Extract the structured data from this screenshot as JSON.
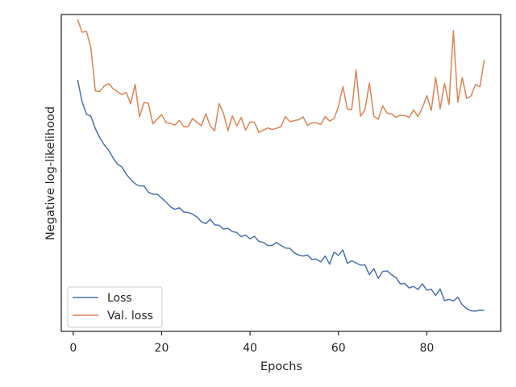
{
  "chart_data": {
    "type": "line",
    "title": "",
    "xlabel": "Epochs",
    "ylabel": "Negative log-likelihood",
    "xlim": [
      -2.7,
      96.7
    ],
    "xticks": [
      0,
      20,
      40,
      60,
      80
    ],
    "ylim": [
      0,
      100
    ],
    "yticks_visible": false,
    "grid": false,
    "legend": {
      "placement": "lower-left",
      "entries": [
        "Loss",
        "Val. loss"
      ]
    },
    "colors": {
      "Loss": "#4c72b0",
      "Val. loss": "#dd8452",
      "axes": "#262626"
    },
    "series": [
      {
        "name": "Loss",
        "x": [
          1,
          2,
          3,
          4,
          5,
          6,
          7,
          8,
          9,
          10,
          11,
          12,
          13,
          14,
          15,
          16,
          17,
          18,
          19,
          20,
          21,
          22,
          23,
          24,
          25,
          26,
          27,
          28,
          29,
          30,
          31,
          32,
          33,
          34,
          35,
          36,
          37,
          38,
          39,
          40,
          41,
          42,
          43,
          44,
          45,
          46,
          47,
          48,
          49,
          50,
          51,
          52,
          53,
          54,
          55,
          56,
          57,
          58,
          59,
          60,
          61,
          62,
          63,
          64,
          65,
          66,
          67,
          68,
          69,
          70,
          71,
          72,
          73,
          74,
          75,
          76,
          77,
          78,
          79,
          80,
          81,
          82,
          83,
          84,
          85,
          86,
          87,
          88,
          89,
          90,
          91,
          92,
          93
        ],
        "y": [
          79.4,
          72.5,
          68.5,
          67.9,
          64.0,
          61.2,
          58.9,
          57.2,
          54.8,
          52.8,
          51.9,
          49.6,
          48.0,
          46.6,
          45.9,
          45.9,
          43.9,
          43.3,
          43.3,
          42.1,
          40.8,
          39.3,
          38.5,
          39.0,
          37.7,
          37.5,
          37.0,
          36.1,
          34.6,
          34.0,
          35.4,
          33.6,
          33.5,
          32.3,
          32.5,
          31.5,
          31.2,
          29.9,
          30.4,
          29.2,
          30.0,
          28.4,
          28.1,
          27.1,
          27.1,
          28.1,
          27.1,
          26.3,
          26.2,
          24.8,
          24.1,
          23.8,
          24.1,
          22.7,
          22.8,
          21.9,
          23.8,
          21.2,
          25.0,
          24.0,
          25.7,
          21.5,
          22.3,
          21.6,
          20.9,
          21.0,
          17.9,
          19.8,
          16.7,
          18.9,
          19.1,
          17.9,
          17.0,
          15.0,
          15.1,
          13.7,
          14.2,
          13.2,
          15.0,
          13.0,
          13.3,
          11.3,
          13.4,
          9.7,
          10.1,
          9.6,
          10.8,
          8.4,
          7.2,
          6.5,
          6.4,
          6.7,
          6.6
        ]
      },
      {
        "name": "Val. loss",
        "x": [
          1,
          2,
          3,
          4,
          5,
          6,
          7,
          8,
          9,
          10,
          11,
          12,
          13,
          14,
          15,
          16,
          17,
          18,
          19,
          20,
          21,
          22,
          23,
          24,
          25,
          26,
          27,
          28,
          29,
          30,
          31,
          32,
          33,
          34,
          35,
          36,
          37,
          38,
          39,
          40,
          41,
          42,
          43,
          44,
          45,
          46,
          47,
          48,
          49,
          50,
          51,
          52,
          53,
          54,
          55,
          56,
          57,
          58,
          59,
          60,
          61,
          62,
          63,
          64,
          65,
          66,
          67,
          68,
          69,
          70,
          71,
          72,
          73,
          74,
          75,
          76,
          77,
          78,
          79,
          80,
          81,
          82,
          83,
          84,
          85,
          86,
          87,
          88,
          89,
          90,
          91,
          92,
          93
        ],
        "y": [
          98.4,
          94.4,
          94.7,
          89.5,
          75.9,
          75.7,
          77.4,
          78.2,
          76.6,
          75.7,
          74.7,
          75.4,
          71.8,
          77.9,
          67.7,
          72.2,
          72.0,
          65.5,
          67.0,
          68.4,
          65.9,
          65.6,
          65.1,
          66.6,
          64.6,
          64.6,
          67.2,
          66.0,
          64.9,
          68.7,
          64.8,
          63.3,
          71.9,
          68.8,
          63.3,
          68.0,
          64.9,
          67.5,
          63.5,
          66.1,
          66.0,
          62.8,
          63.5,
          64.2,
          63.7,
          64.1,
          64.6,
          67.8,
          66.2,
          66.5,
          66.8,
          67.7,
          65.0,
          65.8,
          65.8,
          65.3,
          67.8,
          66.4,
          67.1,
          70.9,
          77.3,
          70.2,
          70.0,
          82.5,
          67.9,
          70.0,
          78.4,
          67.9,
          66.9,
          71.2,
          68.9,
          68.6,
          67.6,
          68.2,
          68.1,
          67.5,
          69.9,
          67.8,
          70.6,
          74.4,
          69.7,
          80.2,
          70.2,
          78.2,
          71.6,
          94.9,
          72.3,
          80.1,
          73.5,
          74.3,
          77.9,
          77.2,
          85.7
        ]
      }
    ]
  }
}
